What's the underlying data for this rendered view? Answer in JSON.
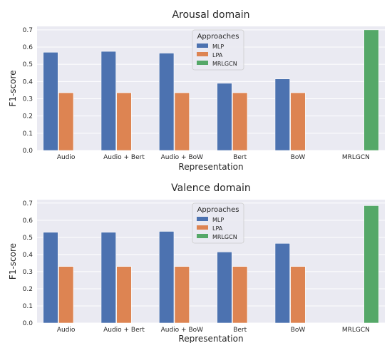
{
  "colors": {
    "MLP": "#4c72b0",
    "LPA": "#dd8452",
    "MRLGCN": "#55a868",
    "plot_bg": "#eaeaf2",
    "grid": "#ffffff"
  },
  "chart_data": [
    {
      "type": "bar",
      "title": "Arousal domain",
      "xlabel": "Representation",
      "ylabel": "F1-score",
      "ylim": [
        0,
        0.72
      ],
      "yticks": [
        "0.0",
        "0.1",
        "0.2",
        "0.3",
        "0.4",
        "0.5",
        "0.6",
        "0.7"
      ],
      "grid": true,
      "legend": {
        "title": "Approaches",
        "placement": "top-center"
      },
      "categories": [
        "Audio",
        "Audio + Bert",
        "Audio + BoW",
        "Bert",
        "BoW",
        "MRLGCN"
      ],
      "series": [
        {
          "name": "MLP",
          "values": [
            0.57,
            0.575,
            0.565,
            0.39,
            0.415,
            null
          ]
        },
        {
          "name": "LPA",
          "values": [
            0.335,
            0.335,
            0.335,
            0.335,
            0.335,
            null
          ]
        },
        {
          "name": "MRLGCN",
          "values": [
            null,
            null,
            null,
            null,
            null,
            0.7
          ]
        }
      ]
    },
    {
      "type": "bar",
      "title": "Valence domain",
      "xlabel": "Representation",
      "ylabel": "F1-score",
      "ylim": [
        0,
        0.72
      ],
      "yticks": [
        "0.0",
        "0.1",
        "0.2",
        "0.3",
        "0.4",
        "0.5",
        "0.6",
        "0.7"
      ],
      "grid": true,
      "legend": {
        "title": "Approaches",
        "placement": "top-center"
      },
      "categories": [
        "Audio",
        "Audio + Bert",
        "Audio + BoW",
        "Bert",
        "BoW",
        "MRLGCN"
      ],
      "series": [
        {
          "name": "MLP",
          "values": [
            0.53,
            0.53,
            0.535,
            0.415,
            0.465,
            null
          ]
        },
        {
          "name": "LPA",
          "values": [
            0.33,
            0.33,
            0.33,
            0.33,
            0.33,
            null
          ]
        },
        {
          "name": "MRLGCN",
          "values": [
            null,
            null,
            null,
            null,
            null,
            0.685
          ]
        }
      ]
    }
  ]
}
